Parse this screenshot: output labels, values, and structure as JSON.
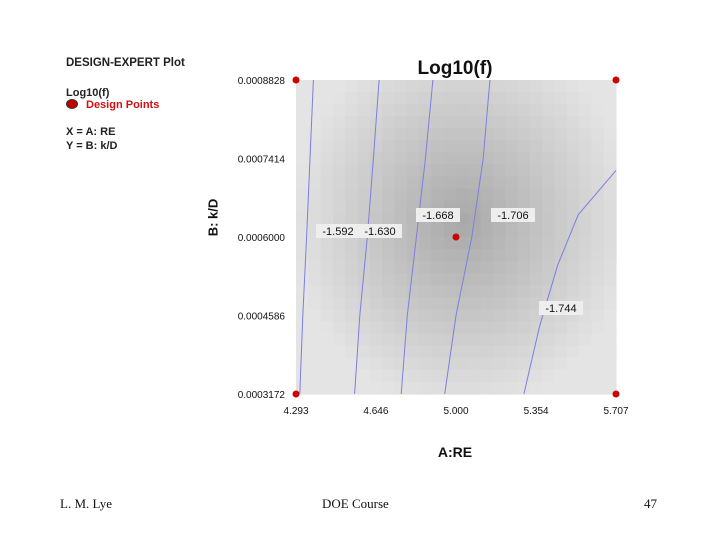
{
  "legend": {
    "plot_title": "DESIGN-EXPERT Plot",
    "response": "Log10(f)",
    "design_points_label": "Design Points",
    "x_def": "X = A: RE",
    "y_def": "Y = B: k/D"
  },
  "chart_data": {
    "type": "heatmap",
    "subtype": "contour",
    "title": "Log10(f)",
    "xlabel": "A:RE",
    "ylabel": "B: k/D",
    "xlim": [
      4.293,
      5.707
    ],
    "ylim": [
      0.0003172,
      0.0008828
    ],
    "x_ticks": [
      "4.293",
      "4.646",
      "5.000",
      "5.354",
      "5.707"
    ],
    "y_ticks": [
      "0.0003172",
      "0.0004586",
      "0.0006000",
      "0.0007414",
      "0.0008828"
    ],
    "grid": false,
    "contours": [
      {
        "label": "-1.592",
        "points": [
          [
            4.37,
            0.0008828
          ],
          [
            4.355,
            0.0007414
          ],
          [
            4.34,
            0.0006
          ],
          [
            4.323,
            0.0004586
          ],
          [
            4.31,
            0.0003172
          ]
        ]
      },
      {
        "label": "-1.630",
        "points": [
          [
            4.66,
            0.0008828
          ],
          [
            4.635,
            0.0007414
          ],
          [
            4.608,
            0.0006
          ],
          [
            4.575,
            0.0004586
          ],
          [
            4.552,
            0.0003172
          ]
        ]
      },
      {
        "label": "-1.668",
        "points": [
          [
            4.898,
            0.0008828
          ],
          [
            4.865,
            0.0007414
          ],
          [
            4.825,
            0.0006
          ],
          [
            4.785,
            0.0004586
          ],
          [
            4.758,
            0.0003172
          ]
        ]
      },
      {
        "label": "-1.706",
        "points": [
          [
            5.15,
            0.0008828
          ],
          [
            5.12,
            0.0007414
          ],
          [
            5.07,
            0.0006
          ],
          [
            5.0,
            0.0004586
          ],
          [
            4.95,
            0.0003172
          ]
        ]
      },
      {
        "label": "-1.744",
        "points": [
          [
            5.707,
            0.00072
          ],
          [
            5.54,
            0.00064
          ],
          [
            5.45,
            0.00055
          ],
          [
            5.37,
            0.00044
          ],
          [
            5.3,
            0.0003172
          ]
        ]
      }
    ],
    "design_points": [
      {
        "x": 4.293,
        "y": 0.0008828
      },
      {
        "x": 5.707,
        "y": 0.0008828
      },
      {
        "x": 5.0,
        "y": 0.0006
      },
      {
        "x": 4.293,
        "y": 0.0003172
      },
      {
        "x": 5.707,
        "y": 0.0003172
      }
    ],
    "colors": {
      "contour": "#7b7fe0",
      "design_point": "#cc0000"
    }
  },
  "footer": {
    "author": "L. M. Lye",
    "course": "DOE  Course",
    "page": "47"
  }
}
